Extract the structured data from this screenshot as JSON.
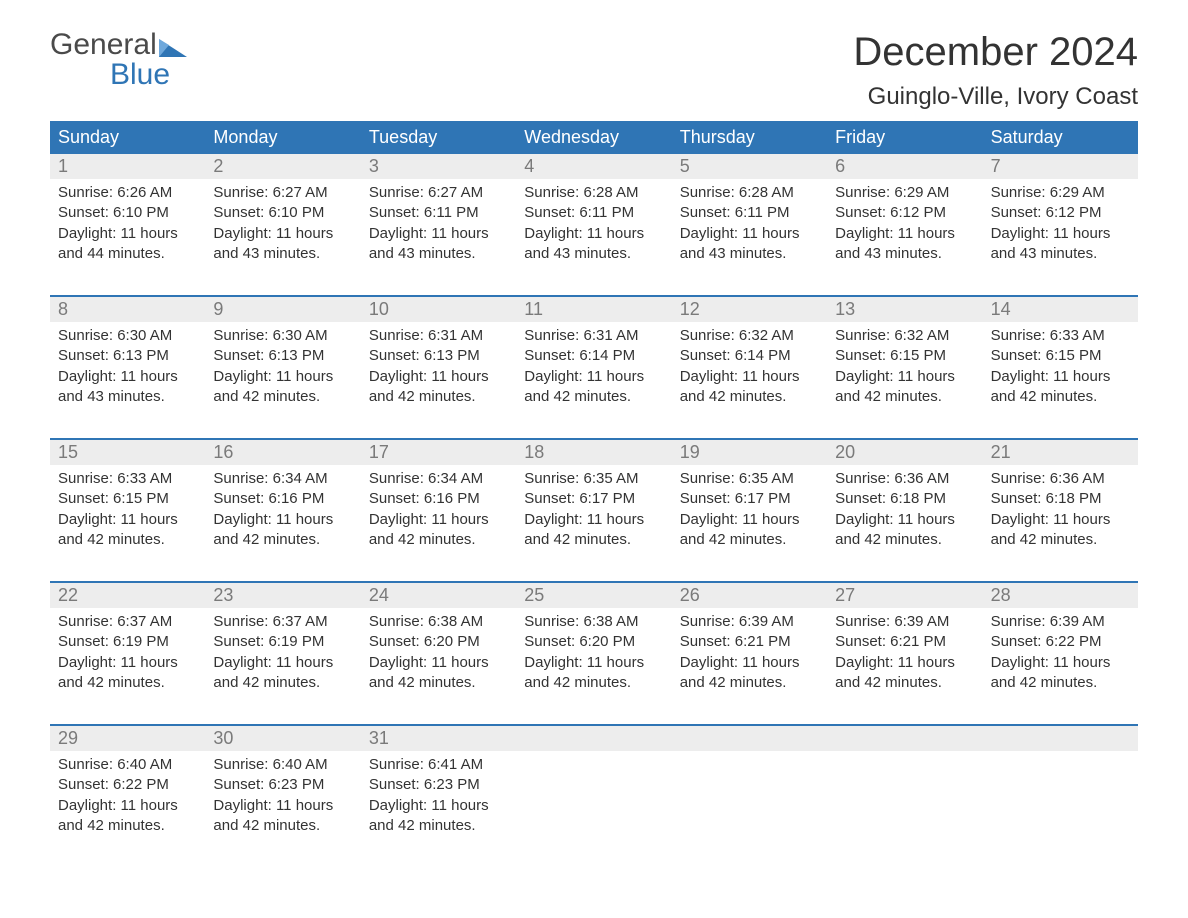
{
  "brand": {
    "word1": "General",
    "word2": "Blue",
    "text_color1": "#4a4a4a",
    "text_color2": "#2f75b5",
    "icon_color": "#2f75b5"
  },
  "title": {
    "month": "December 2024",
    "location": "Guinglo-Ville, Ivory Coast",
    "month_fontsize": 40,
    "location_fontsize": 24,
    "color": "#333333"
  },
  "styling": {
    "header_bg": "#2f75b5",
    "header_text_color": "#ffffff",
    "daynum_bg": "#ededed",
    "daynum_color": "#7a7a7a",
    "body_text_color": "#333333",
    "week_border_color": "#2f75b5",
    "body_fontsize": 15,
    "header_fontsize": 18,
    "daynum_fontsize": 18,
    "background": "#ffffff"
  },
  "day_labels": [
    "Sunday",
    "Monday",
    "Tuesday",
    "Wednesday",
    "Thursday",
    "Friday",
    "Saturday"
  ],
  "weeks": [
    [
      {
        "day": "1",
        "sunrise": "Sunrise: 6:26 AM",
        "sunset": "Sunset: 6:10 PM",
        "daylight1": "Daylight: 11 hours",
        "daylight2": "and 44 minutes."
      },
      {
        "day": "2",
        "sunrise": "Sunrise: 6:27 AM",
        "sunset": "Sunset: 6:10 PM",
        "daylight1": "Daylight: 11 hours",
        "daylight2": "and 43 minutes."
      },
      {
        "day": "3",
        "sunrise": "Sunrise: 6:27 AM",
        "sunset": "Sunset: 6:11 PM",
        "daylight1": "Daylight: 11 hours",
        "daylight2": "and 43 minutes."
      },
      {
        "day": "4",
        "sunrise": "Sunrise: 6:28 AM",
        "sunset": "Sunset: 6:11 PM",
        "daylight1": "Daylight: 11 hours",
        "daylight2": "and 43 minutes."
      },
      {
        "day": "5",
        "sunrise": "Sunrise: 6:28 AM",
        "sunset": "Sunset: 6:11 PM",
        "daylight1": "Daylight: 11 hours",
        "daylight2": "and 43 minutes."
      },
      {
        "day": "6",
        "sunrise": "Sunrise: 6:29 AM",
        "sunset": "Sunset: 6:12 PM",
        "daylight1": "Daylight: 11 hours",
        "daylight2": "and 43 minutes."
      },
      {
        "day": "7",
        "sunrise": "Sunrise: 6:29 AM",
        "sunset": "Sunset: 6:12 PM",
        "daylight1": "Daylight: 11 hours",
        "daylight2": "and 43 minutes."
      }
    ],
    [
      {
        "day": "8",
        "sunrise": "Sunrise: 6:30 AM",
        "sunset": "Sunset: 6:13 PM",
        "daylight1": "Daylight: 11 hours",
        "daylight2": "and 43 minutes."
      },
      {
        "day": "9",
        "sunrise": "Sunrise: 6:30 AM",
        "sunset": "Sunset: 6:13 PM",
        "daylight1": "Daylight: 11 hours",
        "daylight2": "and 42 minutes."
      },
      {
        "day": "10",
        "sunrise": "Sunrise: 6:31 AM",
        "sunset": "Sunset: 6:13 PM",
        "daylight1": "Daylight: 11 hours",
        "daylight2": "and 42 minutes."
      },
      {
        "day": "11",
        "sunrise": "Sunrise: 6:31 AM",
        "sunset": "Sunset: 6:14 PM",
        "daylight1": "Daylight: 11 hours",
        "daylight2": "and 42 minutes."
      },
      {
        "day": "12",
        "sunrise": "Sunrise: 6:32 AM",
        "sunset": "Sunset: 6:14 PM",
        "daylight1": "Daylight: 11 hours",
        "daylight2": "and 42 minutes."
      },
      {
        "day": "13",
        "sunrise": "Sunrise: 6:32 AM",
        "sunset": "Sunset: 6:15 PM",
        "daylight1": "Daylight: 11 hours",
        "daylight2": "and 42 minutes."
      },
      {
        "day": "14",
        "sunrise": "Sunrise: 6:33 AM",
        "sunset": "Sunset: 6:15 PM",
        "daylight1": "Daylight: 11 hours",
        "daylight2": "and 42 minutes."
      }
    ],
    [
      {
        "day": "15",
        "sunrise": "Sunrise: 6:33 AM",
        "sunset": "Sunset: 6:15 PM",
        "daylight1": "Daylight: 11 hours",
        "daylight2": "and 42 minutes."
      },
      {
        "day": "16",
        "sunrise": "Sunrise: 6:34 AM",
        "sunset": "Sunset: 6:16 PM",
        "daylight1": "Daylight: 11 hours",
        "daylight2": "and 42 minutes."
      },
      {
        "day": "17",
        "sunrise": "Sunrise: 6:34 AM",
        "sunset": "Sunset: 6:16 PM",
        "daylight1": "Daylight: 11 hours",
        "daylight2": "and 42 minutes."
      },
      {
        "day": "18",
        "sunrise": "Sunrise: 6:35 AM",
        "sunset": "Sunset: 6:17 PM",
        "daylight1": "Daylight: 11 hours",
        "daylight2": "and 42 minutes."
      },
      {
        "day": "19",
        "sunrise": "Sunrise: 6:35 AM",
        "sunset": "Sunset: 6:17 PM",
        "daylight1": "Daylight: 11 hours",
        "daylight2": "and 42 minutes."
      },
      {
        "day": "20",
        "sunrise": "Sunrise: 6:36 AM",
        "sunset": "Sunset: 6:18 PM",
        "daylight1": "Daylight: 11 hours",
        "daylight2": "and 42 minutes."
      },
      {
        "day": "21",
        "sunrise": "Sunrise: 6:36 AM",
        "sunset": "Sunset: 6:18 PM",
        "daylight1": "Daylight: 11 hours",
        "daylight2": "and 42 minutes."
      }
    ],
    [
      {
        "day": "22",
        "sunrise": "Sunrise: 6:37 AM",
        "sunset": "Sunset: 6:19 PM",
        "daylight1": "Daylight: 11 hours",
        "daylight2": "and 42 minutes."
      },
      {
        "day": "23",
        "sunrise": "Sunrise: 6:37 AM",
        "sunset": "Sunset: 6:19 PM",
        "daylight1": "Daylight: 11 hours",
        "daylight2": "and 42 minutes."
      },
      {
        "day": "24",
        "sunrise": "Sunrise: 6:38 AM",
        "sunset": "Sunset: 6:20 PM",
        "daylight1": "Daylight: 11 hours",
        "daylight2": "and 42 minutes."
      },
      {
        "day": "25",
        "sunrise": "Sunrise: 6:38 AM",
        "sunset": "Sunset: 6:20 PM",
        "daylight1": "Daylight: 11 hours",
        "daylight2": "and 42 minutes."
      },
      {
        "day": "26",
        "sunrise": "Sunrise: 6:39 AM",
        "sunset": "Sunset: 6:21 PM",
        "daylight1": "Daylight: 11 hours",
        "daylight2": "and 42 minutes."
      },
      {
        "day": "27",
        "sunrise": "Sunrise: 6:39 AM",
        "sunset": "Sunset: 6:21 PM",
        "daylight1": "Daylight: 11 hours",
        "daylight2": "and 42 minutes."
      },
      {
        "day": "28",
        "sunrise": "Sunrise: 6:39 AM",
        "sunset": "Sunset: 6:22 PM",
        "daylight1": "Daylight: 11 hours",
        "daylight2": "and 42 minutes."
      }
    ],
    [
      {
        "day": "29",
        "sunrise": "Sunrise: 6:40 AM",
        "sunset": "Sunset: 6:22 PM",
        "daylight1": "Daylight: 11 hours",
        "daylight2": "and 42 minutes."
      },
      {
        "day": "30",
        "sunrise": "Sunrise: 6:40 AM",
        "sunset": "Sunset: 6:23 PM",
        "daylight1": "Daylight: 11 hours",
        "daylight2": "and 42 minutes."
      },
      {
        "day": "31",
        "sunrise": "Sunrise: 6:41 AM",
        "sunset": "Sunset: 6:23 PM",
        "daylight1": "Daylight: 11 hours",
        "daylight2": "and 42 minutes."
      },
      {
        "empty": true
      },
      {
        "empty": true
      },
      {
        "empty": true
      },
      {
        "empty": true
      }
    ]
  ]
}
